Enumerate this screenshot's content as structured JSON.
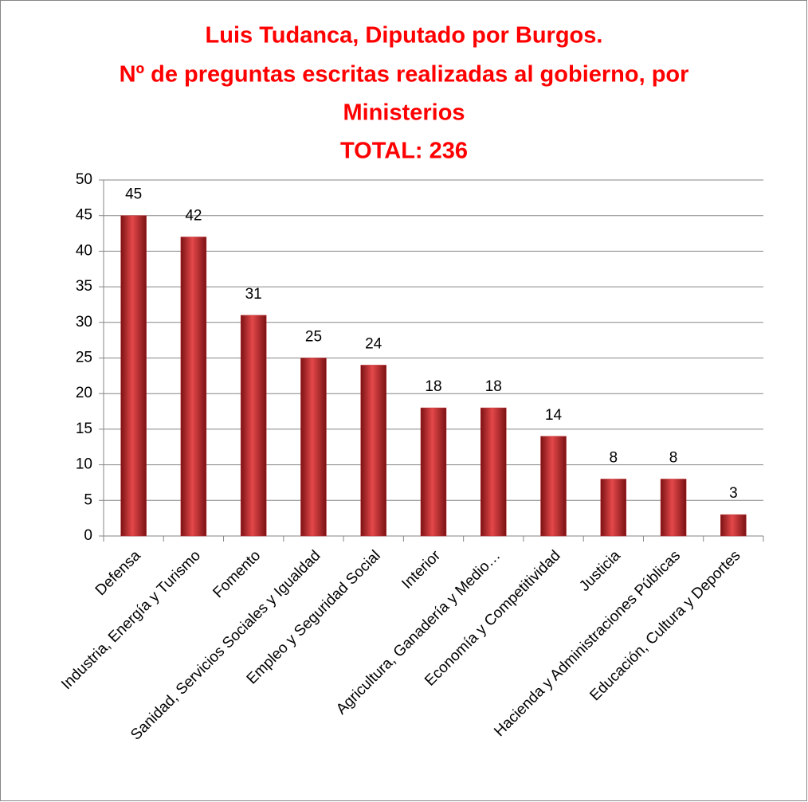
{
  "chart_data": {
    "type": "bar",
    "title": [
      "Luis Tudanca, Diputado por Burgos.",
      "Nº de preguntas escritas realizadas al gobierno, por",
      "Ministerios",
      "TOTAL: 236"
    ],
    "categories": [
      "Defensa",
      "Industria, Energía y Turismo",
      "Fomento",
      "Sanidad, Servicios Sociales y Igualdad",
      "Empleo y Seguridad Social",
      "Interior",
      "Agricultura, Ganadería y Medio…",
      "Economía y Competitividad",
      "Justicia",
      "Hacienda y Administraciones Públicas",
      "Educación, Cultura y Deportes"
    ],
    "values": [
      45,
      42,
      31,
      25,
      24,
      18,
      18,
      14,
      8,
      8,
      3
    ],
    "color": "#c0282a",
    "ylim": [
      0,
      50
    ],
    "yticks": [
      0,
      5,
      10,
      15,
      20,
      25,
      30,
      35,
      40,
      45,
      50
    ],
    "grid": true
  }
}
